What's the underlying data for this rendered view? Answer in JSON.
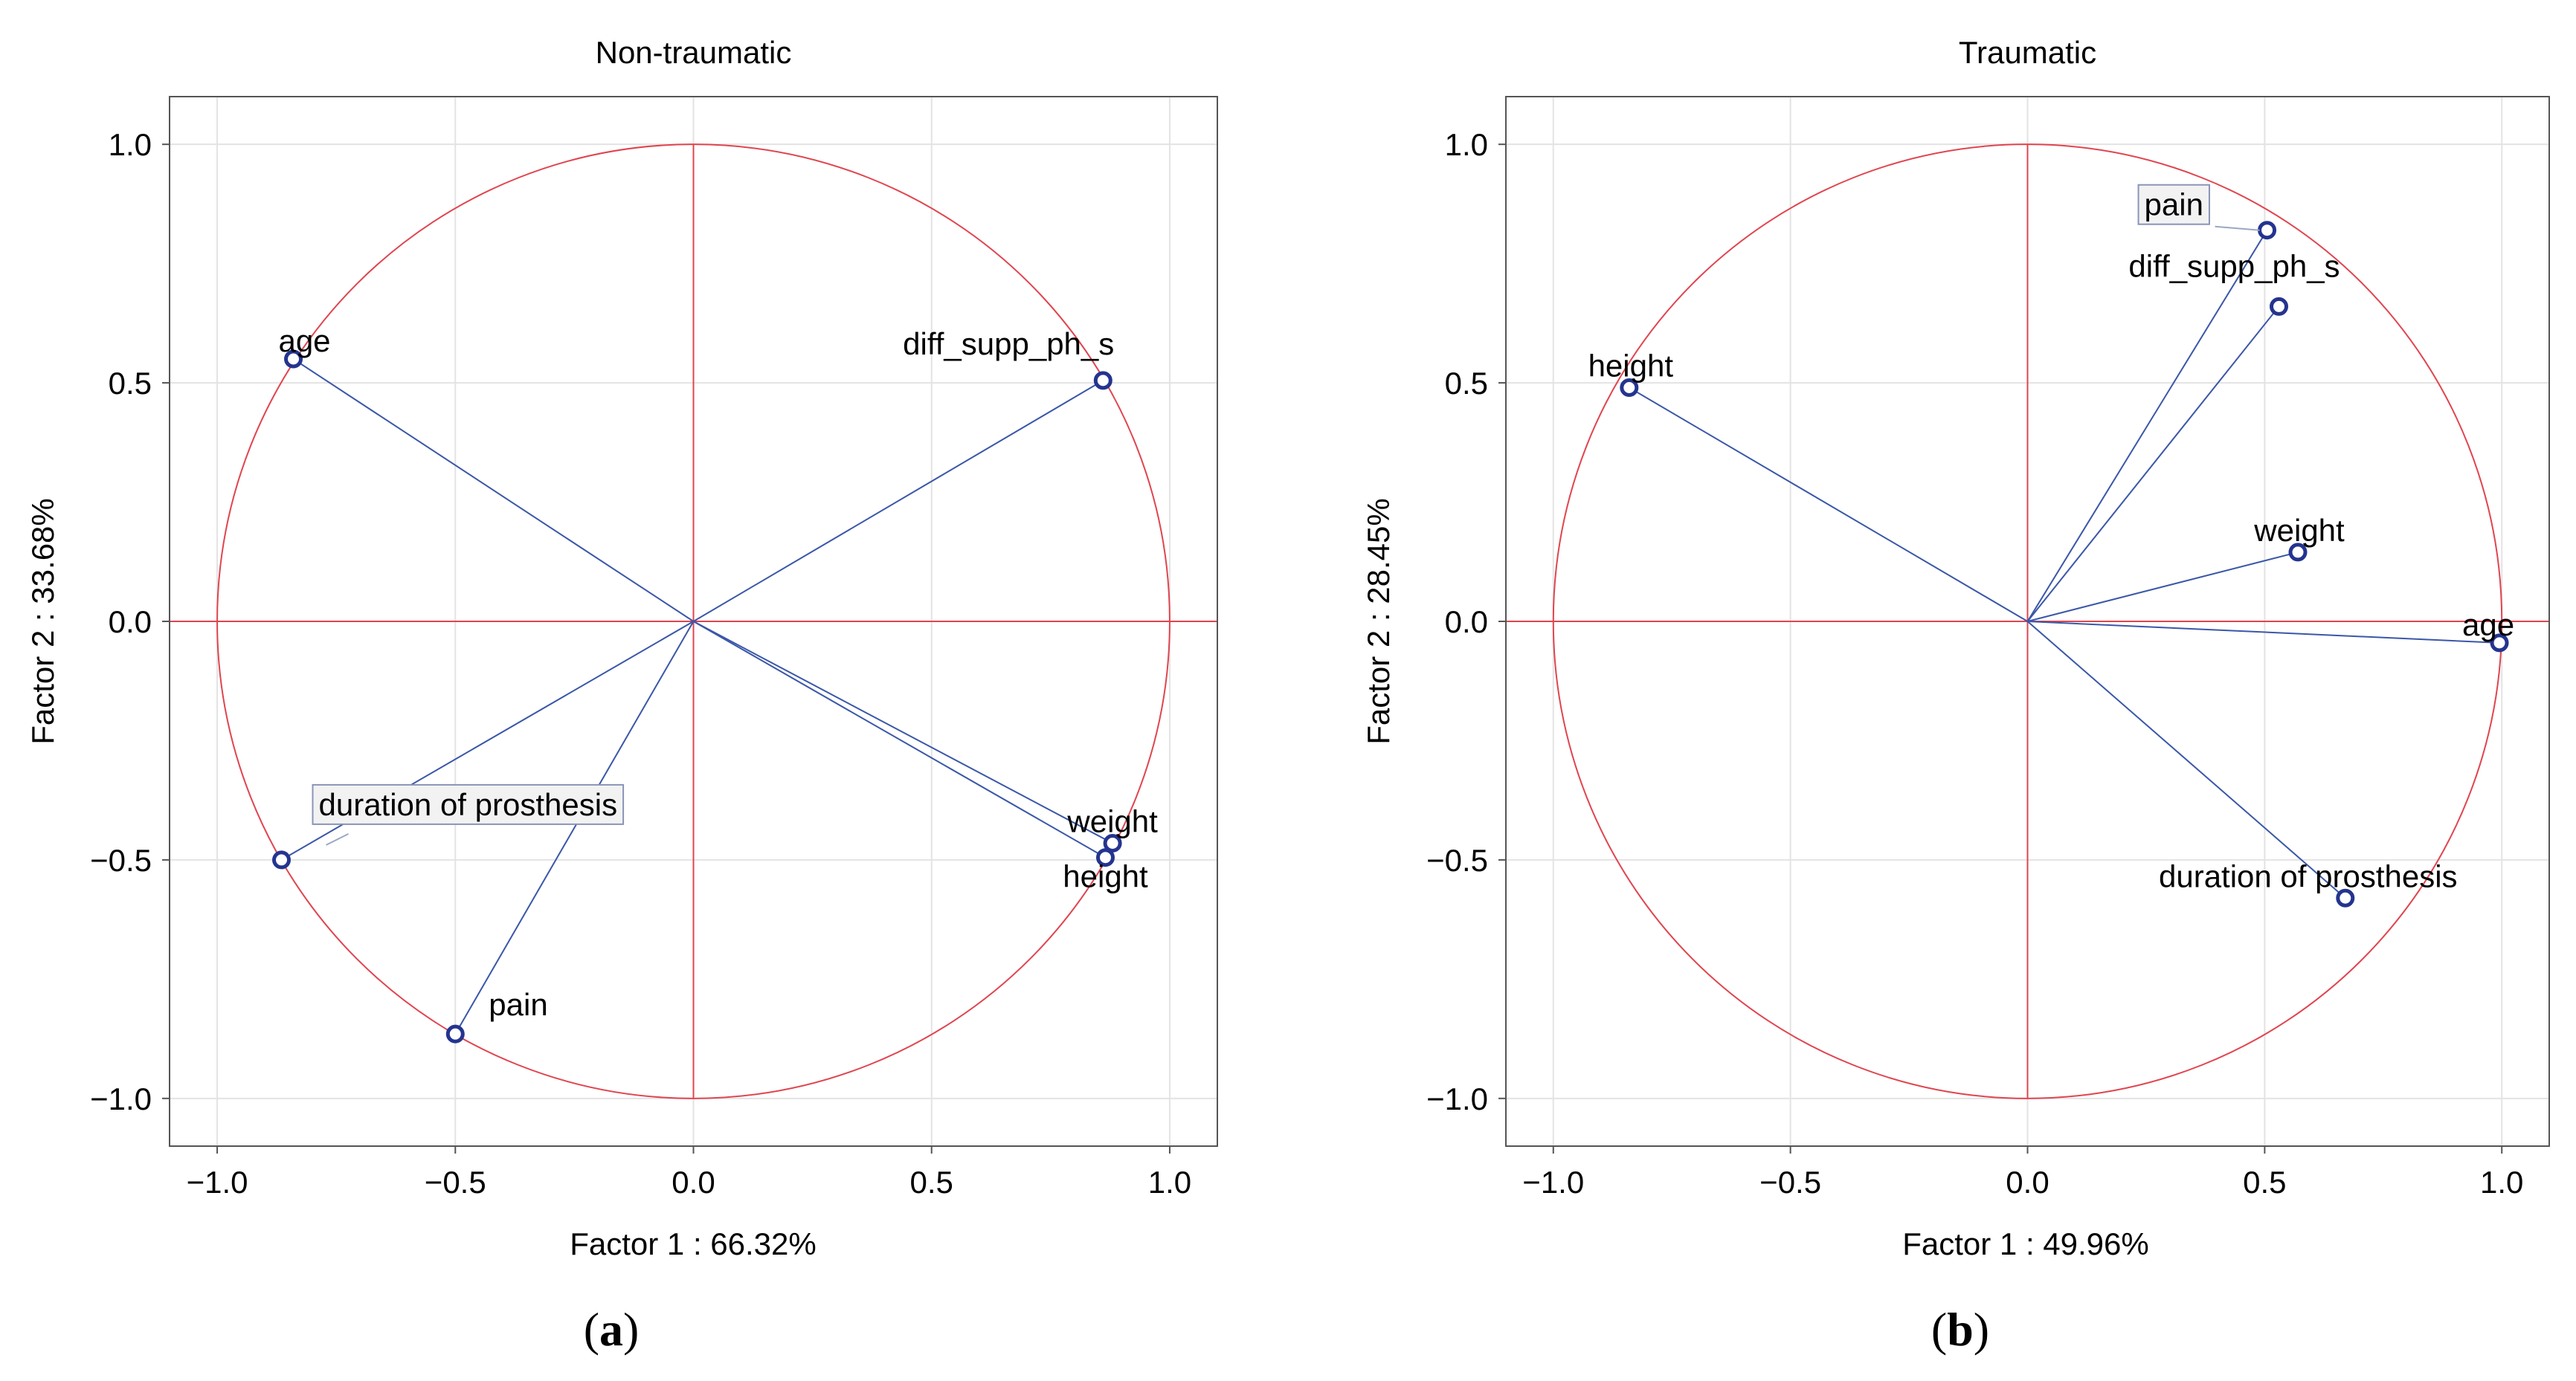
{
  "chart_data": [
    {
      "type": "scatter",
      "title": "Non-traumatic",
      "xlabel": "Factor 1 : 66.32%",
      "ylabel": "Factor 2 : 33.68%",
      "xlim": [
        -1.1,
        1.1
      ],
      "ylim": [
        -1.1,
        1.1
      ],
      "xticks": [
        -1.0,
        -0.5,
        0.0,
        0.5,
        1.0
      ],
      "yticks": [
        -1.0,
        -0.5,
        0.0,
        0.5,
        1.0
      ],
      "xtick_labels": [
        "−1.0",
        "−0.5",
        "0.0",
        "0.5",
        "1.0"
      ],
      "ytick_labels": [
        "1.0",
        "0.5",
        "0.0",
        "−0.5",
        "−1.0"
      ],
      "grid": true,
      "unit_circle": true,
      "caption_letter": "a",
      "points": [
        {
          "label": "age",
          "x": -0.84,
          "y": 0.55
        },
        {
          "label": "diff_supp_ph_s",
          "x": 0.86,
          "y": 0.505
        },
        {
          "label": "duration of prosthesis",
          "x": -0.865,
          "y": -0.5,
          "boxed": true
        },
        {
          "label": "pain",
          "x": -0.5,
          "y": -0.865
        },
        {
          "label": "weight",
          "x": 0.88,
          "y": -0.465
        },
        {
          "label": "height",
          "x": 0.865,
          "y": -0.495
        }
      ]
    },
    {
      "type": "scatter",
      "title": "Traumatic",
      "xlabel": "Factor 1 : 49.96%",
      "ylabel": "Factor 2 : 28.45%",
      "xlim": [
        -1.1,
        1.1
      ],
      "ylim": [
        -1.1,
        1.1
      ],
      "xticks": [
        -1.0,
        -0.5,
        0.0,
        0.5,
        1.0
      ],
      "yticks": [
        -1.0,
        -0.5,
        0.0,
        0.5,
        1.0
      ],
      "xtick_labels": [
        "−1.0",
        "−0.5",
        "0.0",
        "0.5",
        "1.0"
      ],
      "ytick_labels": [
        "1.0",
        "0.5",
        "0.0",
        "−0.5",
        "−1.0"
      ],
      "grid": true,
      "unit_circle": true,
      "caption_letter": "b",
      "points": [
        {
          "label": "pain",
          "x": 0.505,
          "y": 0.82,
          "boxed": true
        },
        {
          "label": "diff_supp_ph_s",
          "x": 0.53,
          "y": 0.66
        },
        {
          "label": "height",
          "x": -0.84,
          "y": 0.49
        },
        {
          "label": "weight",
          "x": 0.57,
          "y": 0.145
        },
        {
          "label": "age",
          "x": 0.995,
          "y": -0.045
        },
        {
          "label": "duration of prosthesis",
          "x": 0.67,
          "y": -0.58
        }
      ]
    }
  ],
  "colors": {
    "circle": "#e0454f",
    "vector": "#3a57a8",
    "marker": "#24348f",
    "grid": "#e3e3e3",
    "frame": "#555555"
  }
}
